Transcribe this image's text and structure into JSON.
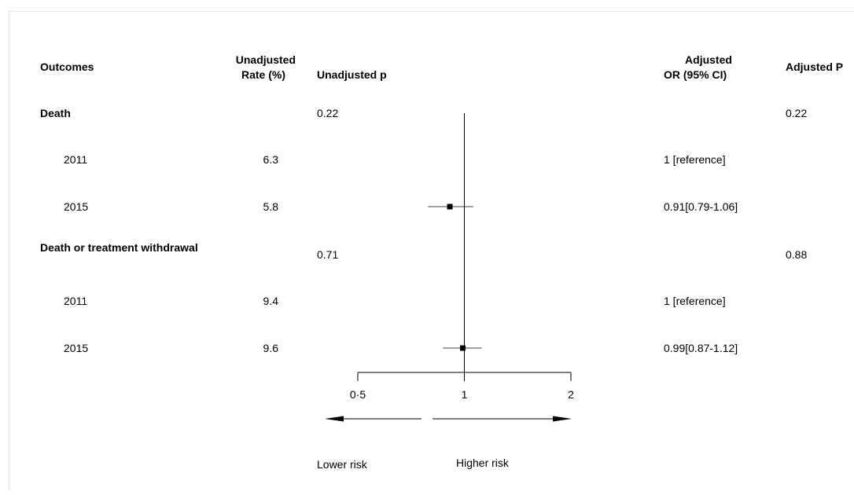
{
  "chart_data": {
    "type": "forest",
    "title": "",
    "columns": {
      "outcomes": "Outcomes",
      "rate_line1": "Unadjusted",
      "rate_line2": "Rate (%)",
      "unadj_p": "Unadjusted p",
      "adj_or_line1": "Adjusted",
      "adj_or_line2": "OR (95% CI)",
      "adj_p": "Adjusted P"
    },
    "rows": [
      {
        "label": "Death",
        "header": true,
        "rate": "",
        "unadj_p": "0.22",
        "adj_or": "",
        "adj_p": "0.22"
      },
      {
        "label": "2011",
        "header": false,
        "rate": "6.3",
        "unadj_p": "",
        "adj_or": "1 [reference]",
        "adj_p": ""
      },
      {
        "label": "2015",
        "header": false,
        "rate": "5.8",
        "unadj_p": "",
        "adj_or": "0.91[0.79-1.06]",
        "adj_p": "",
        "or": 0.91,
        "lower": 0.79,
        "upper": 1.06
      },
      {
        "label": "Death or treatment withdrawal",
        "header": true,
        "rate": "",
        "unadj_p": "0.71",
        "adj_or": "",
        "adj_p": "0.88"
      },
      {
        "label": "2011",
        "header": false,
        "rate": "9.4",
        "unadj_p": "",
        "adj_or": "1 [reference]",
        "adj_p": ""
      },
      {
        "label": "2015",
        "header": false,
        "rate": "9.6",
        "unadj_p": "",
        "adj_or": "0.99[0.87-1.12]",
        "adj_p": "",
        "or": 0.99,
        "lower": 0.87,
        "upper": 1.12
      }
    ],
    "x_axis": {
      "scale": "log",
      "range": [
        0.5,
        2
      ],
      "ticks": [
        {
          "value": 0.5,
          "label": "0·5"
        },
        {
          "value": 1,
          "label": "1"
        },
        {
          "value": 2,
          "label": "2"
        }
      ],
      "reference_line": 1
    },
    "annotations": {
      "lower": "Lower risk",
      "higher": "Higher risk"
    }
  }
}
